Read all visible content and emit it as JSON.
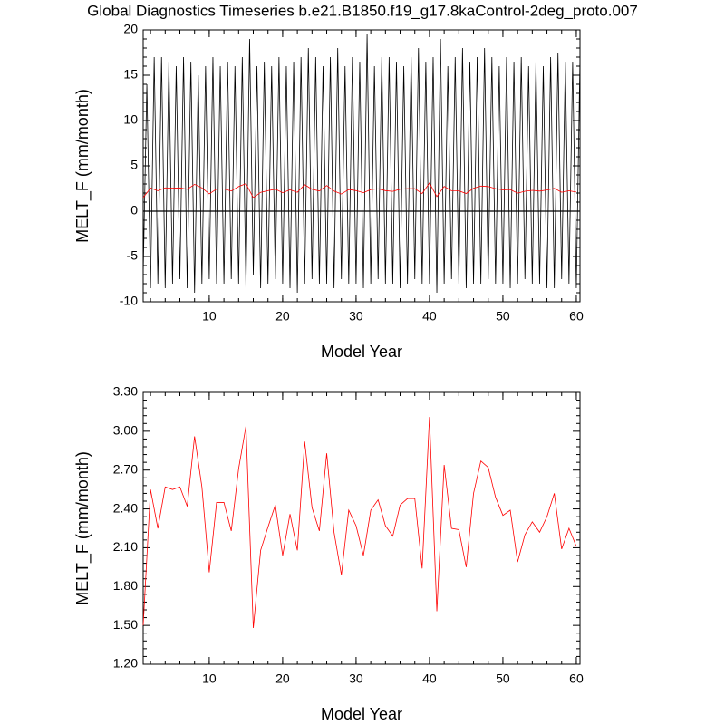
{
  "chart_data": [
    {
      "type": "line",
      "title": "Global Diagnostics Timeseries b.e21.B1850.f19_g17.8kaControl-2deg_proto.007",
      "xlabel": "Model Year",
      "ylabel": "MELT_F (mm/month)",
      "xlim": [
        1,
        60.5
      ],
      "xticks": [
        10,
        20,
        30,
        40,
        50,
        60
      ],
      "ylim": [
        -10,
        20
      ],
      "yticks": [
        -10,
        -5,
        0,
        5,
        10,
        15,
        20
      ],
      "zero_line": true,
      "series": [
        {
          "color": "#000000",
          "x": [
            1,
            1.5,
            2,
            2.5,
            3,
            3.5,
            4,
            4.5,
            5,
            5.5,
            6,
            6.5,
            7,
            7.5,
            8,
            8.5,
            9,
            9.5,
            10,
            10.5,
            11,
            11.5,
            12,
            12.5,
            13,
            13.5,
            14,
            14.5,
            15,
            15.5,
            16,
            16.5,
            17,
            17.5,
            18,
            18.5,
            19,
            19.5,
            20,
            20.5,
            21,
            21.5,
            22,
            22.5,
            23,
            23.5,
            24,
            24.5,
            25,
            25.5,
            26,
            26.5,
            27,
            27.5,
            28,
            28.5,
            29,
            29.5,
            30,
            30.5,
            31,
            31.5,
            32,
            32.5,
            33,
            33.5,
            34,
            34.5,
            35,
            35.5,
            36,
            36.5,
            37,
            37.5,
            38,
            38.5,
            39,
            39.5,
            40,
            40.5,
            41,
            41.5,
            42,
            42.5,
            43,
            43.5,
            44,
            44.5,
            45,
            45.5,
            46,
            46.5,
            47,
            47.5,
            48,
            48.5,
            49,
            49.5,
            50,
            50.5,
            51,
            51.5,
            52,
            52.5,
            53,
            53.5,
            54,
            54.5,
            55,
            55.5,
            56,
            56.5,
            57,
            57.5,
            58,
            58.5,
            59,
            59.5,
            60,
            60.5
          ],
          "values": [
            -7,
            14,
            -8.5,
            17,
            -8,
            17,
            -8.5,
            16.5,
            -8,
            16,
            -7.5,
            17,
            -8.5,
            16.5,
            -9,
            15,
            -8,
            16,
            -7.5,
            17,
            -8,
            16,
            -8,
            16.5,
            -7.5,
            16,
            -8,
            17,
            -8.5,
            19,
            -7,
            16,
            -8.5,
            16.5,
            -8,
            16,
            -7.5,
            17,
            -8,
            16,
            -8.5,
            16.5,
            -9,
            17,
            -8,
            18,
            -7.5,
            17,
            -8,
            16,
            -8,
            17,
            -8.5,
            18,
            -7.5,
            16,
            -8,
            17,
            -8,
            16.5,
            -8.5,
            19.5,
            -8,
            16,
            -7.5,
            17,
            -8,
            17,
            -8,
            16.5,
            -8.5,
            16,
            -8,
            17,
            -7.5,
            18,
            -8,
            16.5,
            -8,
            17,
            -9,
            19,
            -8,
            16,
            -7.5,
            17,
            -8,
            18,
            -8.5,
            16.5,
            -8,
            17,
            -8,
            18,
            -7.5,
            17,
            -8,
            16,
            -8,
            17,
            -8.5,
            16.5,
            -8,
            17,
            -7.5,
            16,
            -8,
            16.5,
            -8,
            16,
            -8.5,
            17,
            -8.5,
            17.5,
            -7.5,
            16.5,
            -8,
            16.5,
            -8.5,
            17
          ]
        },
        {
          "color": "#ff0000",
          "x": [
            1,
            2,
            3,
            4,
            5,
            6,
            7,
            8,
            9,
            10,
            11,
            12,
            13,
            14,
            15,
            16,
            17,
            18,
            19,
            20,
            21,
            22,
            23,
            24,
            25,
            26,
            27,
            28,
            29,
            30,
            31,
            32,
            33,
            34,
            35,
            36,
            37,
            38,
            39,
            40,
            41,
            42,
            43,
            44,
            45,
            46,
            47,
            48,
            49,
            50,
            51,
            52,
            53,
            54,
            55,
            56,
            57,
            58,
            59,
            60
          ],
          "values": [
            1.5,
            2.55,
            2.25,
            2.57,
            2.55,
            2.57,
            2.42,
            2.96,
            2.57,
            1.91,
            2.45,
            2.45,
            2.23,
            2.71,
            3.04,
            1.48,
            2.08,
            2.26,
            2.43,
            2.04,
            2.36,
            2.08,
            2.92,
            2.41,
            2.23,
            2.83,
            2.22,
            1.89,
            2.39,
            2.27,
            2.04,
            2.39,
            2.47,
            2.27,
            2.19,
            2.43,
            2.48,
            2.48,
            1.94,
            3.11,
            1.61,
            2.74,
            2.25,
            2.24,
            1.95,
            2.52,
            2.77,
            2.72,
            2.49,
            2.35,
            2.39,
            1.99,
            2.2,
            2.3,
            2.22,
            2.34,
            2.52,
            2.09,
            2.25,
            2.11
          ]
        }
      ]
    },
    {
      "type": "line",
      "xlabel": "Model Year",
      "ylabel": "MELT_F (mm/month)",
      "xlim": [
        1,
        60.5
      ],
      "xticks": [
        10,
        20,
        30,
        40,
        50,
        60
      ],
      "ylim": [
        1.2,
        3.3
      ],
      "yticks": [
        {
          "value": 1.2,
          "label": "1.20"
        },
        {
          "value": 1.5,
          "label": "1.50"
        },
        {
          "value": 1.8,
          "label": "1.80"
        },
        {
          "value": 2.1,
          "label": "2.10"
        },
        {
          "value": 2.4,
          "label": "2.40"
        },
        {
          "value": 2.7,
          "label": "2.70"
        },
        {
          "value": 3.0,
          "label": "3.00"
        },
        {
          "value": 3.3,
          "label": "3.30"
        }
      ],
      "zero_line": false,
      "series": [
        {
          "color": "#ff0000",
          "x": [
            1,
            2,
            3,
            4,
            5,
            6,
            7,
            8,
            9,
            10,
            11,
            12,
            13,
            14,
            15,
            16,
            17,
            18,
            19,
            20,
            21,
            22,
            23,
            24,
            25,
            26,
            27,
            28,
            29,
            30,
            31,
            32,
            33,
            34,
            35,
            36,
            37,
            38,
            39,
            40,
            41,
            42,
            43,
            44,
            45,
            46,
            47,
            48,
            49,
            50,
            51,
            52,
            53,
            54,
            55,
            56,
            57,
            58,
            59,
            60
          ],
          "values": [
            1.5,
            2.55,
            2.25,
            2.57,
            2.55,
            2.57,
            2.42,
            2.96,
            2.57,
            1.91,
            2.45,
            2.45,
            2.23,
            2.71,
            3.04,
            1.48,
            2.08,
            2.26,
            2.43,
            2.04,
            2.36,
            2.08,
            2.92,
            2.41,
            2.23,
            2.83,
            2.22,
            1.89,
            2.39,
            2.27,
            2.04,
            2.39,
            2.47,
            2.27,
            2.19,
            2.43,
            2.48,
            2.48,
            1.94,
            3.11,
            1.61,
            2.74,
            2.25,
            2.24,
            1.95,
            2.52,
            2.77,
            2.72,
            2.49,
            2.35,
            2.39,
            1.99,
            2.2,
            2.3,
            2.22,
            2.34,
            2.52,
            2.09,
            2.25,
            2.11
          ]
        }
      ]
    }
  ]
}
